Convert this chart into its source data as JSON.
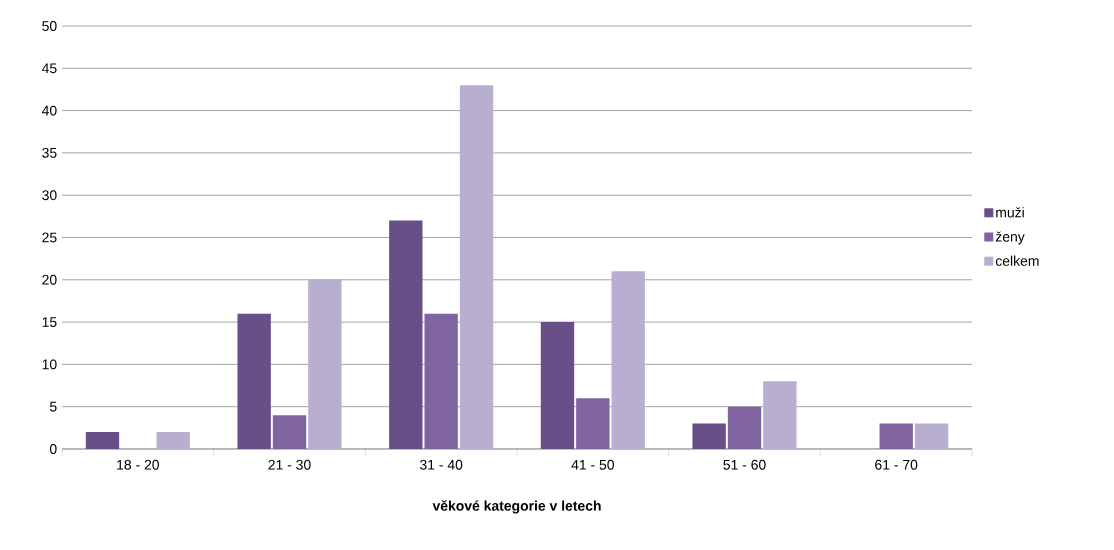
{
  "chart_data": {
    "type": "bar",
    "xlabel": "věkové kategorie v letech",
    "categories": [
      "18 - 20",
      "21 - 30",
      "31 - 40",
      "41 - 50",
      "51 - 60",
      "61 - 70"
    ],
    "series": [
      {
        "name": "muži",
        "color": "#694f88",
        "values": [
          2,
          16,
          27,
          15,
          3,
          0
        ]
      },
      {
        "name": "ženy",
        "color": "#8064a2",
        "values": [
          0,
          4,
          16,
          6,
          5,
          3
        ]
      },
      {
        "name": "celkem",
        "color": "#b8aecf",
        "values": [
          2,
          20,
          43,
          21,
          8,
          3
        ]
      }
    ],
    "ylim": [
      0,
      50
    ],
    "yticks": [
      0,
      5,
      10,
      15,
      20,
      25,
      30,
      35,
      40,
      45,
      50
    ],
    "grid": "y",
    "legend": "right"
  }
}
